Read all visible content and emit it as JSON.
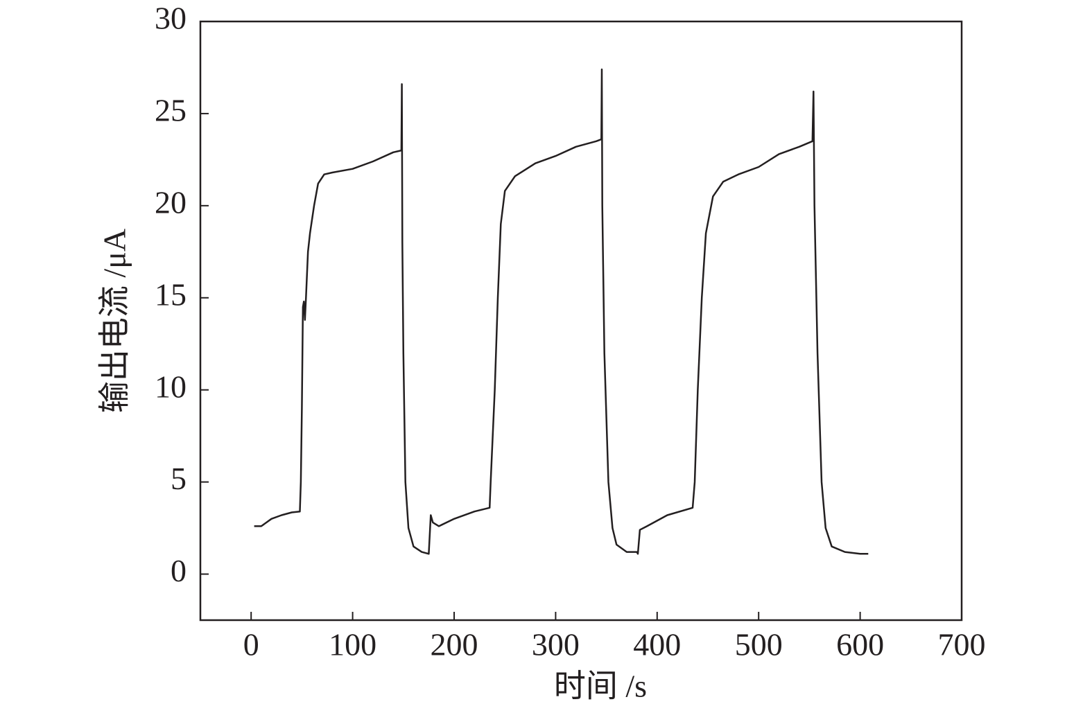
{
  "chart_data": {
    "type": "line",
    "xlabel": "时间 /s",
    "ylabel": "输出电流 /μA",
    "color": "#231f20",
    "xlim": [
      -50,
      700
    ],
    "ylim": [
      -2.5,
      30
    ],
    "xticks": [
      0,
      100,
      200,
      300,
      400,
      500,
      600,
      700
    ],
    "yticks": [
      0,
      5,
      10,
      15,
      20,
      25,
      30
    ],
    "x": [
      3,
      10,
      20,
      30,
      40,
      48,
      49,
      50,
      51,
      52,
      53,
      54,
      56,
      58,
      62,
      66,
      72,
      80,
      100,
      120,
      140,
      148,
      148.5,
      149,
      150,
      152,
      155,
      160,
      168,
      175,
      177,
      179,
      185,
      200,
      220,
      235,
      236,
      240,
      243,
      246,
      250,
      260,
      280,
      300,
      320,
      340,
      345,
      345.5,
      346,
      348,
      352,
      356,
      360,
      370,
      380,
      381,
      383,
      390,
      410,
      435,
      437,
      440,
      444,
      448,
      455,
      465,
      480,
      500,
      520,
      540,
      553,
      554,
      555,
      558,
      562,
      566,
      572,
      585,
      600,
      608
    ],
    "values": [
      2.6,
      2.6,
      3.0,
      3.2,
      3.35,
      3.4,
      5,
      9,
      14.5,
      14.8,
      13.8,
      15,
      17.5,
      18.5,
      20,
      21.2,
      21.7,
      21.8,
      22.0,
      22.4,
      22.9,
      23.0,
      26.6,
      18,
      12,
      5,
      2.5,
      1.5,
      1.2,
      1.1,
      3.2,
      2.8,
      2.6,
      3.0,
      3.4,
      3.6,
      5,
      10,
      15,
      19,
      20.8,
      21.6,
      22.3,
      22.7,
      23.2,
      23.5,
      23.6,
      27.4,
      20,
      12,
      5,
      2.5,
      1.6,
      1.2,
      1.2,
      1.1,
      2.4,
      2.6,
      3.2,
      3.6,
      5,
      10,
      15,
      18.5,
      20.5,
      21.3,
      21.7,
      22.1,
      22.8,
      23.2,
      23.5,
      26.2,
      20,
      12,
      5,
      2.5,
      1.5,
      1.2,
      1.1,
      1.1
    ]
  }
}
